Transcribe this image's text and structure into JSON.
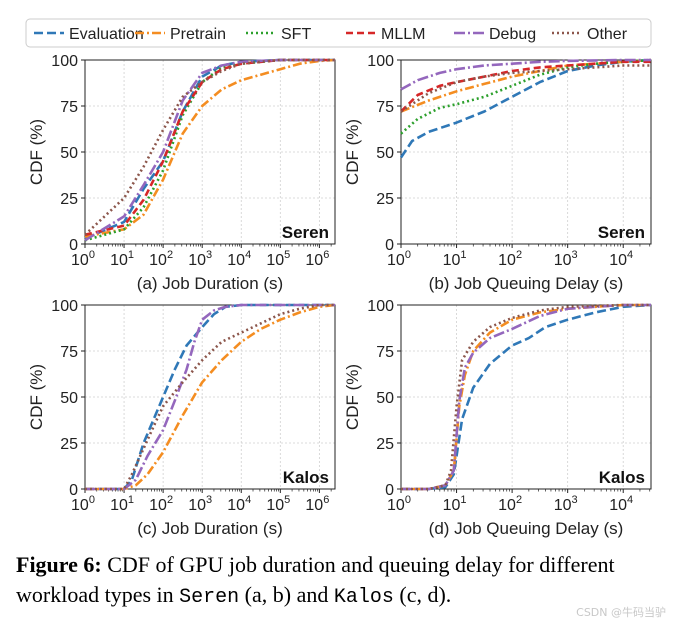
{
  "legend": [
    {
      "name": "Evaluation",
      "color": "#2f78b7",
      "dash": "9,4"
    },
    {
      "name": "Pretrain",
      "color": "#f48d21",
      "dash": "9,3,2,3"
    },
    {
      "name": "SFT",
      "color": "#2ca02c",
      "dash": "2,3"
    },
    {
      "name": "MLLM",
      "color": "#d62728",
      "dash": "7,4"
    },
    {
      "name": "Debug",
      "color": "#9467bd",
      "dash": "11,3,2,3"
    },
    {
      "name": "Other",
      "color": "#8c564b",
      "dash": "2,3"
    }
  ],
  "chart_data": [
    {
      "type": "line",
      "panel": "a",
      "xscale": "log",
      "xlim_exp": [
        0,
        6.4
      ],
      "ylim": [
        0,
        100
      ],
      "xticks_exp": [
        0,
        1,
        2,
        3,
        4,
        5,
        6
      ],
      "yticks": [
        0,
        25,
        50,
        75,
        100
      ],
      "tag": "Seren",
      "xlabel": "(a) Job Duration (s)",
      "ylabel": "CDF (%)",
      "series": [
        {
          "name": "Evaluation",
          "x_log10": [
            0,
            1,
            1.5,
            2,
            2.5,
            3,
            3.5,
            4,
            5,
            6.4
          ],
          "y": [
            3,
            12,
            30,
            45,
            72,
            91,
            97,
            99,
            100,
            100
          ]
        },
        {
          "name": "Pretrain",
          "x_log10": [
            0,
            1,
            1.5,
            2,
            2.5,
            3,
            3.5,
            4,
            4.5,
            5,
            5.5,
            6,
            6.4
          ],
          "y": [
            4,
            8,
            16,
            35,
            60,
            75,
            84,
            89,
            92,
            95,
            98,
            99.5,
            100
          ]
        },
        {
          "name": "SFT",
          "x_log10": [
            0,
            1,
            1.5,
            2,
            2.5,
            3,
            3.5,
            4,
            5,
            6.4
          ],
          "y": [
            2,
            8,
            20,
            40,
            70,
            88,
            96,
            98,
            100,
            100
          ]
        },
        {
          "name": "MLLM",
          "x_log10": [
            0,
            1,
            1.5,
            2,
            2.5,
            3,
            3.5,
            4,
            5,
            6.4
          ],
          "y": [
            5,
            10,
            24,
            45,
            72,
            88,
            95,
            98,
            100,
            100
          ]
        },
        {
          "name": "Debug",
          "x_log10": [
            0,
            1,
            1.5,
            2,
            2.5,
            3,
            3.5,
            4,
            5,
            6.4
          ],
          "y": [
            2,
            15,
            32,
            50,
            78,
            93,
            97,
            99,
            100,
            100
          ]
        },
        {
          "name": "Other",
          "x_log10": [
            0,
            1,
            1.5,
            2,
            2.5,
            3,
            3.5,
            4,
            5,
            6.4
          ],
          "y": [
            5,
            25,
            42,
            62,
            80,
            88,
            94,
            98,
            100,
            100
          ]
        }
      ]
    },
    {
      "type": "line",
      "panel": "b",
      "xscale": "log",
      "xlim_exp": [
        0,
        4.5
      ],
      "ylim": [
        0,
        100
      ],
      "xticks_exp": [
        0,
        1,
        2,
        3,
        4
      ],
      "yticks": [
        0,
        25,
        50,
        75,
        100
      ],
      "tag": "Seren",
      "xlabel": "(b) Job Queuing Delay (s)",
      "ylabel": "CDF (%)",
      "series": [
        {
          "name": "Evaluation",
          "x_log10": [
            0,
            0.2,
            0.5,
            1,
            1.5,
            2,
            2.5,
            3,
            3.5,
            4,
            4.5
          ],
          "y": [
            47,
            56,
            61,
            66,
            72,
            80,
            88,
            94,
            97,
            99,
            100
          ]
        },
        {
          "name": "Pretrain",
          "x_log10": [
            0,
            0.5,
            1,
            1.5,
            2,
            2.5,
            3,
            3.5,
            4,
            4.5
          ],
          "y": [
            72,
            78,
            83,
            87,
            91,
            94,
            97,
            98,
            99,
            100
          ]
        },
        {
          "name": "SFT",
          "x_log10": [
            0,
            0.3,
            0.7,
            1,
            1.5,
            2,
            2.5,
            3,
            3.5,
            4,
            4.5
          ],
          "y": [
            60,
            68,
            74,
            76,
            80,
            86,
            92,
            96,
            98,
            99,
            100
          ]
        },
        {
          "name": "MLLM",
          "x_log10": [
            0,
            0.3,
            0.7,
            1,
            1.5,
            2,
            2.5,
            3,
            3.5,
            4,
            4.5
          ],
          "y": [
            72,
            81,
            86,
            88,
            91,
            94,
            96,
            97,
            98,
            99,
            99
          ]
        },
        {
          "name": "Debug",
          "x_log10": [
            0,
            0.3,
            0.7,
            1,
            1.5,
            2,
            2.5,
            3,
            4,
            4.5
          ],
          "y": [
            84,
            89,
            93,
            95,
            97,
            98,
            99,
            99.5,
            100,
            100
          ]
        },
        {
          "name": "Other",
          "x_log10": [
            0,
            0.5,
            1,
            1.5,
            2,
            2.5,
            3,
            3.5,
            4,
            4.5
          ],
          "y": [
            72,
            82,
            88,
            91,
            93,
            94,
            95,
            96,
            97,
            97
          ]
        }
      ]
    },
    {
      "type": "line",
      "panel": "c",
      "xscale": "log",
      "xlim_exp": [
        0,
        6.4
      ],
      "ylim": [
        0,
        100
      ],
      "xticks_exp": [
        0,
        1,
        2,
        3,
        4,
        5,
        6
      ],
      "yticks": [
        0,
        25,
        50,
        75,
        100
      ],
      "tag": "Kalos",
      "xlabel": "(c) Job Duration (s)",
      "ylabel": "CDF (%)",
      "series": [
        {
          "name": "Evaluation",
          "x_log10": [
            0,
            1,
            1.2,
            1.5,
            1.8,
            2,
            2.3,
            2.6,
            3,
            3.3,
            3.6,
            4,
            4.5,
            5,
            6.4
          ],
          "y": [
            0,
            0,
            5,
            25,
            40,
            50,
            65,
            78,
            88,
            95,
            99,
            100,
            100,
            100,
            100
          ]
        },
        {
          "name": "Pretrain",
          "x_log10": [
            0,
            1,
            1.3,
            1.6,
            2,
            2.5,
            3,
            3.5,
            4,
            4.5,
            5,
            5.5,
            6,
            6.4
          ],
          "y": [
            0,
            0,
            2,
            8,
            20,
            40,
            58,
            70,
            80,
            87,
            92,
            96,
            99,
            100
          ]
        },
        {
          "name": "Debug",
          "x_log10": [
            0,
            1,
            1.3,
            1.6,
            2,
            2.3,
            2.6,
            2.8,
            3,
            3.3,
            3.6,
            4,
            5,
            6.4
          ],
          "y": [
            0,
            0,
            5,
            18,
            32,
            48,
            65,
            80,
            92,
            97,
            99,
            100,
            100,
            100
          ]
        },
        {
          "name": "Other",
          "x_log10": [
            0,
            1,
            1.2,
            1.5,
            1.8,
            2,
            2.5,
            3,
            3.5,
            4,
            4.5,
            5,
            5.5,
            6,
            6.4
          ],
          "y": [
            0,
            0,
            8,
            22,
            36,
            45,
            58,
            70,
            80,
            85,
            90,
            95,
            98,
            100,
            100
          ]
        }
      ]
    },
    {
      "type": "line",
      "panel": "d",
      "xscale": "log",
      "xlim_exp": [
        0,
        4.5
      ],
      "ylim": [
        0,
        100
      ],
      "xticks_exp": [
        0,
        1,
        2,
        3,
        4
      ],
      "yticks": [
        0,
        25,
        50,
        75,
        100
      ],
      "tag": "Kalos",
      "xlabel": "(d) Job Queuing Delay (s)",
      "ylabel": "CDF (%)",
      "series": [
        {
          "name": "Evaluation",
          "x_log10": [
            0,
            0.5,
            0.8,
            0.95,
            1.1,
            1.3,
            1.6,
            2,
            2.3,
            2.6,
            3,
            3.5,
            4,
            4.5
          ],
          "y": [
            0,
            0,
            1,
            8,
            38,
            55,
            68,
            78,
            82,
            88,
            92,
            96,
            99,
            100
          ]
        },
        {
          "name": "Pretrain",
          "x_log10": [
            0,
            0.5,
            0.8,
            0.95,
            1.05,
            1.15,
            1.3,
            1.6,
            2,
            2.5,
            3,
            3.5,
            4,
            4.5
          ],
          "y": [
            0,
            0,
            2,
            10,
            45,
            62,
            75,
            85,
            92,
            96,
            98,
            99,
            100,
            100
          ]
        },
        {
          "name": "Debug",
          "x_log10": [
            0,
            0.5,
            0.8,
            0.95,
            1.05,
            1.15,
            1.3,
            1.6,
            2,
            2.5,
            3,
            3.5,
            4,
            4.5
          ],
          "y": [
            0,
            0,
            2,
            10,
            48,
            66,
            74,
            82,
            87,
            94,
            98,
            99,
            100,
            100
          ]
        },
        {
          "name": "Other",
          "x_log10": [
            0,
            0.5,
            0.8,
            0.9,
            1,
            1.1,
            1.3,
            1.6,
            2,
            2.5,
            3,
            3.5,
            4,
            4.5
          ],
          "y": [
            0,
            0,
            2,
            10,
            45,
            70,
            80,
            88,
            93,
            97,
            99,
            99.5,
            100,
            100
          ]
        }
      ]
    }
  ],
  "caption": {
    "label": "Figure 6:",
    "text1": " CDF of GPU job duration and queuing delay for different workload types in ",
    "seren": "Seren",
    "text2": " (a, b) and ",
    "kalos": "Kalos",
    "text3": " (c, d)."
  },
  "watermark": "CSDN @牛码当驴"
}
